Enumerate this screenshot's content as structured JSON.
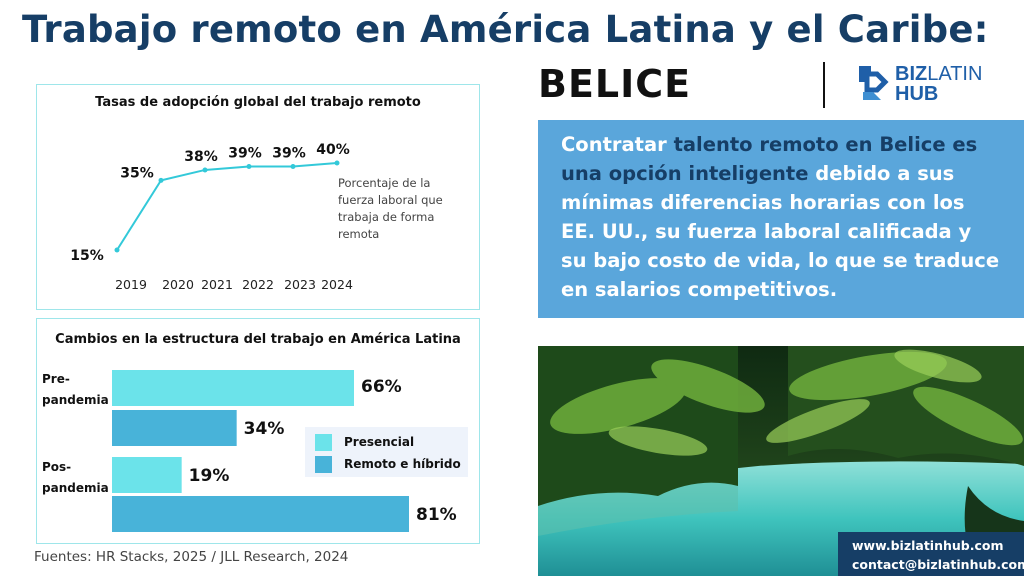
{
  "header": {
    "title": "Trabajo remoto en América Latina y el Caribe:",
    "country": "BELICE",
    "logo": {
      "brand_bold": "BIZ",
      "brand_thin": "LATIN",
      "brand_line2": "HUB"
    }
  },
  "callout": {
    "part1": "Contratar ",
    "highlight1": "talento remoto en Belice es una opción inteligente",
    "part2": " debido a sus mínimas diferencias horarias con los EE. UU., su fuerza laboral calificada y su bajo costo de vida, lo que se traduce en salarios competitivos."
  },
  "contact": {
    "website": "www.bizlatinhub.com",
    "email": "contact@bizlatinhub.com"
  },
  "sources": "Fuentes: HR Stacks, 2025 / JLL Research, 2024",
  "colors": {
    "title": "#163e66",
    "line": "#33c9d9",
    "presencial": "#6be3ea",
    "remoto": "#48b3d9",
    "callout_bg": "#5aa6db"
  },
  "chart_data": [
    {
      "type": "line",
      "title": "Tasas de adopción global del trabajo remoto",
      "x": [
        "2019",
        "2020",
        "2021",
        "2022",
        "2023",
        "2024"
      ],
      "series": [
        {
          "values": [
            15,
            35,
            38,
            39,
            39,
            40
          ]
        }
      ],
      "value_labels": [
        "15%",
        "35%",
        "38%",
        "39%",
        "39%",
        "40%"
      ],
      "annotation": "Porcentaje de la fuerza laboral que trabaja de forma remota",
      "grid": false
    },
    {
      "type": "bar",
      "orientation": "horizontal",
      "title": "Cambios en la estructura del trabajo en América Latina",
      "categories": [
        "Pre-pandemia",
        "Pos-pandemia"
      ],
      "category_lines": [
        [
          "Pre-",
          "pandemia"
        ],
        [
          "Pos-",
          "pandemia"
        ]
      ],
      "series": [
        {
          "name": "Presencial",
          "values": [
            66,
            19
          ]
        },
        {
          "name": "Remoto e híbrido",
          "values": [
            34,
            81
          ]
        }
      ],
      "unit": "%",
      "legend": "right",
      "grid": false
    }
  ]
}
